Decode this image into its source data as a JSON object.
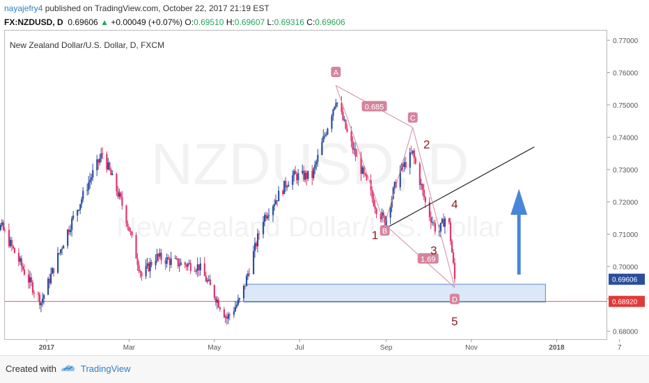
{
  "header": {
    "user": "nayajefry4",
    "published_text": " published on TradingView.com, October 22, 2017 21:19 EST"
  },
  "ticker": {
    "symbol": "FX:NZDUSD, D",
    "price": "0.69606",
    "change_arrow": "▲",
    "change": "+0.00049 (+0.07%)",
    "open_label": "O:",
    "open": "0.69510",
    "high_label": "H:",
    "high": "0.69607",
    "low_label": "L:",
    "low": "0.69316",
    "close_label": "C:",
    "close": "0.69606"
  },
  "chart_title": "New Zealand Dollar/U.S. Dollar, D, FXCM",
  "watermark": {
    "symbol": "NZDUSD, D",
    "name": "New Zealand Dollar/U.S. Dollar"
  },
  "footer": {
    "created_with": "Created with",
    "brand": "TradingView"
  },
  "colors": {
    "bull": "#2a4e9c",
    "bear": "#e0366a",
    "support_line": "#e0584a",
    "zone_fill": "#dbe8f7",
    "zone_border": "#5b87c9",
    "arrow": "#4a86d8",
    "pattern_label_bg": "#d5849d",
    "wave_label": "#8b1a1a"
  },
  "chart_data": {
    "type": "candlestick",
    "y_axis": {
      "ticks": [
        "0.68000",
        "0.69000",
        "0.70000",
        "0.71000",
        "0.72000",
        "0.73000",
        "0.74000",
        "0.75000",
        "0.76000",
        "0.77000"
      ],
      "range": [
        0.6775,
        0.773
      ]
    },
    "x_axis": {
      "ticks": [
        "2017",
        "Mar",
        "May",
        "Jul",
        "Sep",
        "Nov",
        "2018",
        "7"
      ]
    },
    "price_labels": [
      {
        "value": "0.69606",
        "color": "#2a4e9c"
      },
      {
        "value": "0.68920",
        "color": "#e03a3a"
      }
    ],
    "support_level": 0.6892,
    "demand_zone": {
      "low": 0.689,
      "high": 0.6945
    },
    "trendline": {
      "from": 0.7112,
      "to": 0.737
    },
    "pattern_points": {
      "A": {
        "label": "A",
        "value": 0.756
      },
      "B": {
        "label": "B",
        "value": 0.713
      },
      "C": {
        "label": "C",
        "value": 0.743
      },
      "D": {
        "label": "D",
        "value": 0.6935
      }
    },
    "ratios": [
      {
        "label": "0.685"
      },
      {
        "label": "1.69"
      }
    ],
    "wave_labels": [
      "1",
      "2",
      "3",
      "4",
      "5"
    ],
    "series_outline": [
      {
        "date": "2016-11-15",
        "value": 0.715
      },
      {
        "date": "2016-11-30",
        "value": 0.712
      },
      {
        "date": "2016-12-20",
        "value": 0.695
      },
      {
        "date": "2016-12-28",
        "value": 0.689
      },
      {
        "date": "2017-01-15",
        "value": 0.71
      },
      {
        "date": "2017-02-01",
        "value": 0.727
      },
      {
        "date": "2017-02-10",
        "value": 0.735
      },
      {
        "date": "2017-02-25",
        "value": 0.718
      },
      {
        "date": "2017-03-10",
        "value": 0.697
      },
      {
        "date": "2017-03-20",
        "value": 0.703
      },
      {
        "date": "2017-04-05",
        "value": 0.701
      },
      {
        "date": "2017-04-20",
        "value": 0.7
      },
      {
        "date": "2017-05-10",
        "value": 0.684
      },
      {
        "date": "2017-05-20",
        "value": 0.69
      },
      {
        "date": "2017-06-05",
        "value": 0.715
      },
      {
        "date": "2017-06-25",
        "value": 0.728
      },
      {
        "date": "2017-07-10",
        "value": 0.728
      },
      {
        "date": "2017-07-27",
        "value": 0.752
      },
      {
        "date": "2017-08-05",
        "value": 0.74
      },
      {
        "date": "2017-08-25",
        "value": 0.718
      },
      {
        "date": "2017-08-31",
        "value": 0.714
      },
      {
        "date": "2017-09-10",
        "value": 0.729
      },
      {
        "date": "2017-09-20",
        "value": 0.735
      },
      {
        "date": "2017-09-30",
        "value": 0.718
      },
      {
        "date": "2017-10-08",
        "value": 0.71
      },
      {
        "date": "2017-10-15",
        "value": 0.717
      },
      {
        "date": "2017-10-20",
        "value": 0.696
      }
    ]
  }
}
